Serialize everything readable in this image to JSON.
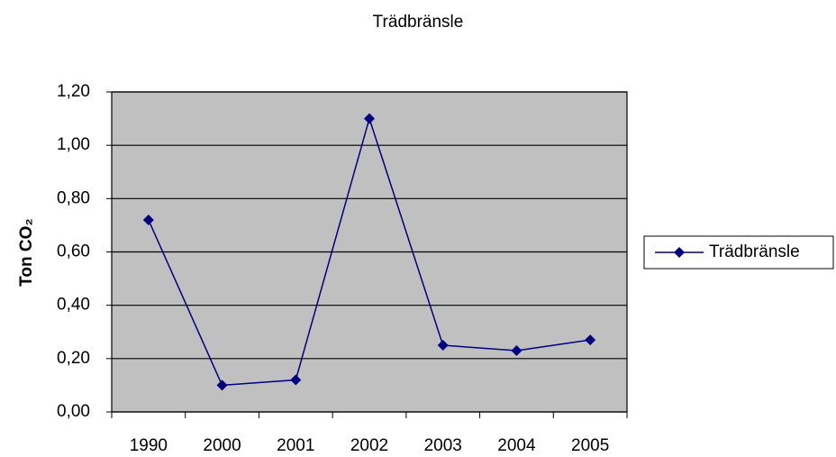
{
  "chart_data": {
    "type": "line",
    "title": "Trädbränsle",
    "y_label": "Ton CO₂",
    "categories": [
      "1990",
      "2000",
      "2001",
      "2002",
      "2003",
      "2004",
      "2005"
    ],
    "series": [
      {
        "name": "Trädbränsle",
        "color": "#000080",
        "values": [
          0.72,
          0.1,
          0.12,
          1.1,
          0.25,
          0.23,
          0.27
        ]
      }
    ],
    "ylim": [
      0,
      1.2
    ],
    "yticks": [
      {
        "value": 0,
        "label": "0,00"
      },
      {
        "value": 0.2,
        "label": "0,20"
      },
      {
        "value": 0.4,
        "label": "0,40"
      },
      {
        "value": 0.6,
        "label": "0,60"
      },
      {
        "value": 0.8,
        "label": "0,80"
      },
      {
        "value": 1.0,
        "label": "1,00"
      },
      {
        "value": 1.2,
        "label": "1,20"
      }
    ],
    "grid": true,
    "legend": "right"
  }
}
